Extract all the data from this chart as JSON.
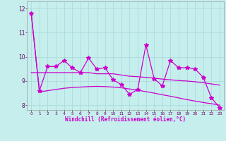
{
  "xlabel": "Windchill (Refroidissement éolien,°C)",
  "x": [
    0,
    1,
    2,
    3,
    4,
    5,
    6,
    7,
    8,
    9,
    10,
    11,
    12,
    13,
    14,
    15,
    16,
    17,
    18,
    19,
    20,
    21,
    22,
    23
  ],
  "line_jagged": [
    11.8,
    8.6,
    9.6,
    9.6,
    9.85,
    9.55,
    9.35,
    9.95,
    9.5,
    9.55,
    9.05,
    8.85,
    8.45,
    8.65,
    10.5,
    9.1,
    8.8,
    9.85,
    9.55,
    9.55,
    9.5,
    9.15,
    8.3,
    7.9
  ],
  "line_flat": [
    9.35,
    9.35,
    9.35,
    9.35,
    9.35,
    9.35,
    9.35,
    9.35,
    9.3,
    9.3,
    9.3,
    9.25,
    9.2,
    9.18,
    9.15,
    9.12,
    9.08,
    9.05,
    9.02,
    9.0,
    8.97,
    8.93,
    8.88,
    8.83
  ],
  "line_descend": [
    11.8,
    8.55,
    8.6,
    8.65,
    8.7,
    8.73,
    8.75,
    8.77,
    8.78,
    8.77,
    8.75,
    8.72,
    8.67,
    8.62,
    8.56,
    8.5,
    8.43,
    8.37,
    8.3,
    8.23,
    8.17,
    8.11,
    8.06,
    8.0
  ],
  "ylim": [
    7.8,
    12.3
  ],
  "xlim": [
    -0.5,
    23.5
  ],
  "yticks": [
    8,
    9,
    10,
    11,
    12
  ],
  "bg_color": "#c5eeed",
  "grid_color": "#a8d8d8",
  "line_color": "#cc00cc",
  "marker": "*",
  "marker_size": 4,
  "line_width": 0.9
}
